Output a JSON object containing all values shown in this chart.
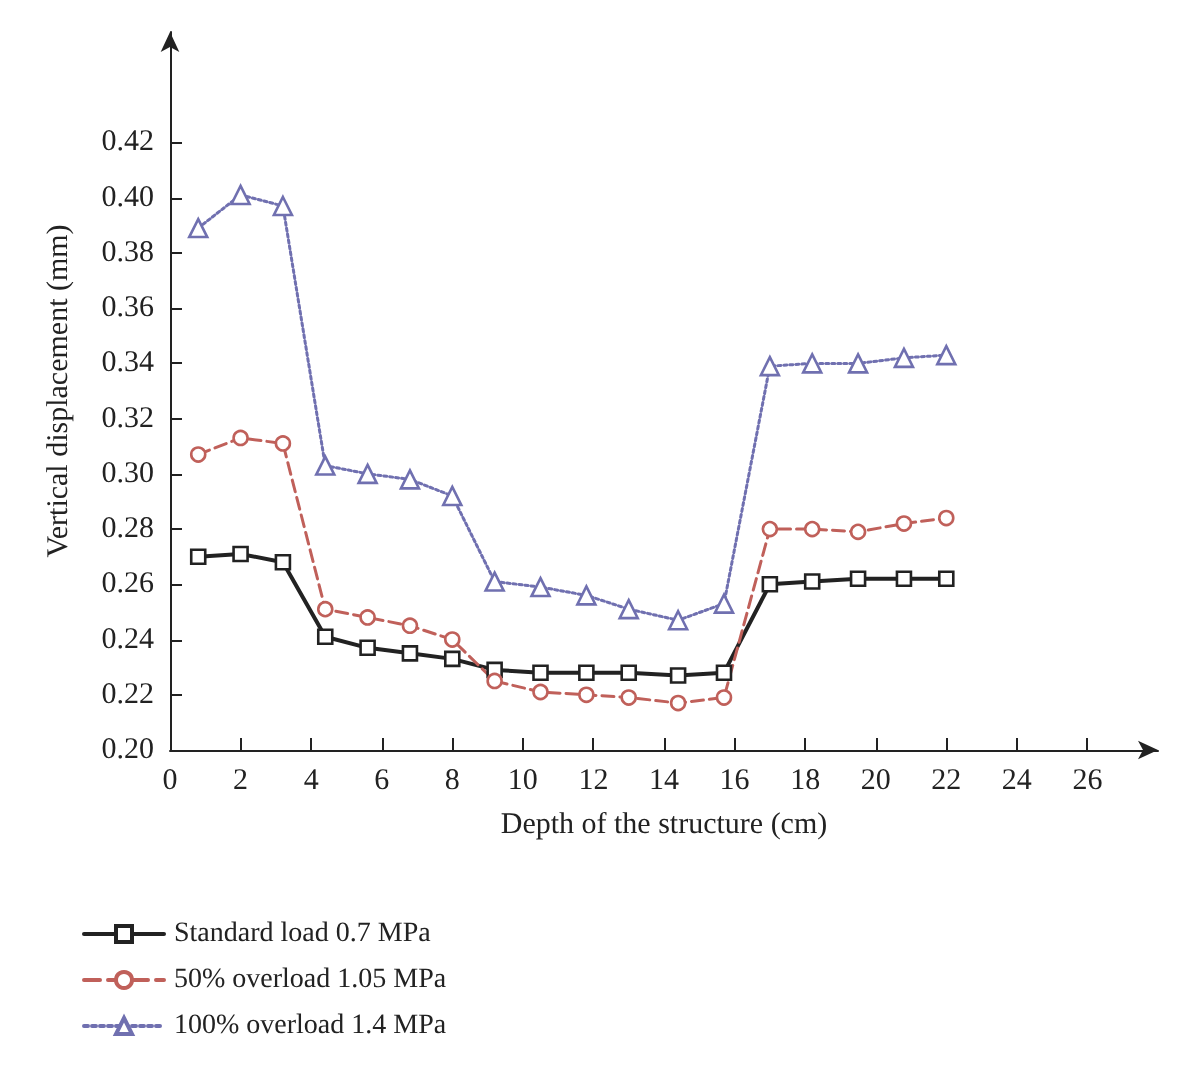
{
  "chart_data": {
    "type": "line",
    "xlabel": "Depth of the structure (cm)",
    "ylabel": "Vertical displacement (mm)",
    "x": [
      0.8,
      2,
      3.2,
      4.4,
      5.6,
      6.8,
      8,
      9.2,
      10.5,
      11.8,
      13,
      14.4,
      15.7,
      17,
      18.2,
      19.5,
      20.8,
      22
    ],
    "series": [
      {
        "name": "Standard load 0.7 MPa",
        "color": "#222222",
        "marker": "square",
        "line_style": "solid",
        "values": [
          0.27,
          0.271,
          0.268,
          0.241,
          0.237,
          0.235,
          0.233,
          0.229,
          0.228,
          0.228,
          0.228,
          0.227,
          0.228,
          0.26,
          0.261,
          0.262,
          0.262,
          0.262
        ]
      },
      {
        "name": "50% overload 1.05 MPa",
        "color": "#c0605a",
        "marker": "circle",
        "line_style": "dashed",
        "values": [
          0.307,
          0.313,
          0.311,
          0.251,
          0.248,
          0.245,
          0.24,
          0.225,
          0.221,
          0.22,
          0.219,
          0.217,
          0.219,
          0.28,
          0.28,
          0.279,
          0.282,
          0.284
        ]
      },
      {
        "name": "100% overload 1.4 MPa",
        "color": "#7070b0",
        "marker": "triangle",
        "line_style": "dotted",
        "values": [
          0.389,
          0.401,
          0.397,
          0.303,
          0.3,
          0.298,
          0.292,
          0.261,
          0.259,
          0.256,
          0.251,
          0.247,
          0.253,
          0.339,
          0.34,
          0.34,
          0.342,
          0.343
        ]
      }
    ],
    "xlim": [
      0,
      28
    ],
    "xticks": [
      0,
      2,
      4,
      6,
      8,
      10,
      12,
      14,
      16,
      18,
      20,
      22,
      24,
      26
    ],
    "ylim": [
      0.2,
      0.46
    ],
    "yticks": [
      {
        "value": 0.2,
        "label": "0.20"
      },
      {
        "value": 0.22,
        "label": "0.22"
      },
      {
        "value": 0.24,
        "label": "0.24"
      },
      {
        "value": 0.26,
        "label": "0.26"
      },
      {
        "value": 0.28,
        "label": "0.28"
      },
      {
        "value": 0.3,
        "label": "0.30"
      },
      {
        "value": 0.32,
        "label": "0.32"
      },
      {
        "value": 0.34,
        "label": "0.34"
      },
      {
        "value": 0.36,
        "label": "0.36"
      },
      {
        "value": 0.38,
        "label": "0.38"
      },
      {
        "value": 0.4,
        "label": "0.40"
      },
      {
        "value": 0.42,
        "label": "0.42"
      }
    ],
    "grid": false,
    "legend": "bottom"
  }
}
